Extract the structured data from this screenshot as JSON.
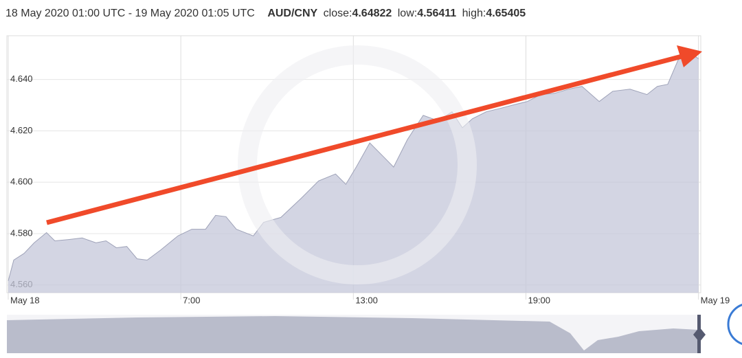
{
  "chart_data": {
    "type": "area",
    "subtitle": "18 May 2020 01:00 UTC - 19 May 2020 01:05 UTC",
    "title": "AUD/CNY",
    "stats": [
      {
        "label": "close:",
        "value": 4.64822
      },
      {
        "label": "low:",
        "value": 4.56411
      },
      {
        "label": "high:",
        "value": 4.65405
      }
    ],
    "x": [
      1.0,
      1.19,
      1.55,
      1.9,
      2.33,
      2.62,
      3.1,
      3.57,
      4.05,
      4.4,
      4.76,
      5.12,
      5.48,
      5.83,
      6.31,
      6.9,
      7.38,
      7.86,
      8.21,
      8.57,
      8.93,
      9.52,
      9.88,
      10.48,
      11.19,
      11.79,
      12.38,
      12.74,
      13.1,
      13.57,
      14.05,
      14.4,
      14.88,
      15.43,
      15.95,
      16.43,
      16.79,
      17.14,
      17.62,
      18.1,
      18.57,
      19.05,
      19.52,
      20.0,
      20.48,
      20.95,
      21.55,
      22.02,
      22.62,
      23.21,
      23.57,
      23.93,
      24.29,
      24.64,
      25.0
    ],
    "series": [
      {
        "name": "AUD/CNY",
        "color": "#c4c7d9",
        "values": [
          4.5616,
          4.5697,
          4.5723,
          4.5764,
          4.5804,
          4.5772,
          4.5777,
          4.5783,
          4.5764,
          4.5772,
          4.5745,
          4.575,
          4.5702,
          4.5697,
          4.5737,
          4.5791,
          4.5817,
          4.5817,
          4.5871,
          4.5866,
          4.5817,
          4.5791,
          4.5844,
          4.5863,
          4.5938,
          4.6005,
          4.6032,
          4.5992,
          4.6059,
          4.6153,
          4.6099,
          4.6059,
          4.6166,
          4.626,
          4.6239,
          4.6274,
          4.6212,
          4.6247,
          4.6274,
          4.6287,
          4.6301,
          4.6314,
          4.6341,
          4.6346,
          4.6362,
          4.6373,
          4.6314,
          4.6354,
          4.6362,
          4.6341,
          4.6373,
          4.6381,
          4.6475,
          4.6507,
          4.6481
        ]
      }
    ],
    "xlim": [
      1,
      25.08
    ],
    "xticks": [
      {
        "value": 1,
        "label": "May 18"
      },
      {
        "value": 7,
        "label": "7:00"
      },
      {
        "value": 13,
        "label": "13:00"
      },
      {
        "value": 19,
        "label": "19:00"
      },
      {
        "value": 25,
        "label": "May 19"
      }
    ],
    "ylim": [
      4.557,
      4.657
    ],
    "yticks": [
      {
        "value": 4.56,
        "label": "4.560"
      },
      {
        "value": 4.58,
        "label": "4.580"
      },
      {
        "value": 4.6,
        "label": "4.600"
      },
      {
        "value": 4.62,
        "label": "4.620"
      },
      {
        "value": 4.64,
        "label": "4.640"
      }
    ],
    "grid": true
  }
}
